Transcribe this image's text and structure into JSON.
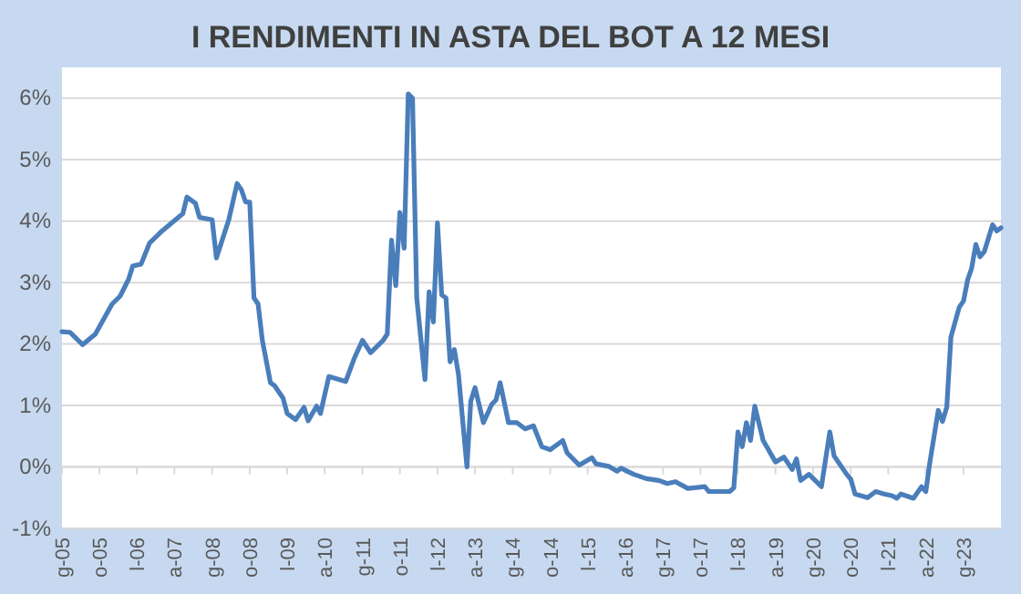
{
  "chart_data": {
    "type": "line",
    "title": "I RENDIMENTI IN ASTA DEL BOT A 12 MESI",
    "x": [
      "2005-01",
      "2005-03",
      "2005-06",
      "2005-09",
      "2006-01",
      "2006-03",
      "2006-05",
      "2006-06",
      "2006-08",
      "2006-10",
      "2007-01",
      "2007-06",
      "2007-07",
      "2007-09",
      "2007-10",
      "2008-01",
      "2008-02",
      "2008-05",
      "2008-07",
      "2008-08",
      "2008-09",
      "2008-10",
      "2008-11",
      "2008-12",
      "2009-01",
      "2009-03",
      "2009-04",
      "2009-06",
      "2009-07",
      "2009-09",
      "2009-11",
      "2009-12",
      "2010-02",
      "2010-03",
      "2010-05",
      "2010-09",
      "2010-11",
      "2011-01",
      "2011-03",
      "2011-06",
      "2011-07",
      "2011-08",
      "2011-09",
      "2011-10",
      "2011-11",
      "2011-12",
      "2012-01",
      "2012-02",
      "2012-04",
      "2012-05",
      "2012-06",
      "2012-07",
      "2012-08",
      "2012-09",
      "2012-10",
      "2012-11",
      "2012-12",
      "2013-02",
      "2013-03",
      "2013-04",
      "2013-06",
      "2013-08",
      "2013-09",
      "2013-10",
      "2013-12",
      "2014-02",
      "2014-04",
      "2014-06",
      "2014-08",
      "2014-10",
      "2015-01",
      "2015-02",
      "2015-05",
      "2015-08",
      "2015-09",
      "2015-12",
      "2016-02",
      "2016-03",
      "2016-06",
      "2016-09",
      "2016-12",
      "2017-02",
      "2017-04",
      "2017-07",
      "2017-11",
      "2017-12",
      "2018-05",
      "2018-06",
      "2018-07",
      "2018-08",
      "2018-09",
      "2018-10",
      "2018-11",
      "2019-01",
      "2019-04",
      "2019-06",
      "2019-08",
      "2019-09",
      "2019-10",
      "2019-12",
      "2020-03",
      "2020-05",
      "2020-06",
      "2020-09",
      "2020-10",
      "2020-11",
      "2021-02",
      "2021-04",
      "2021-06",
      "2021-08",
      "2021-09",
      "2021-10",
      "2022-01",
      "2022-03",
      "2022-04",
      "2022-05",
      "2022-07",
      "2022-08",
      "2022-09",
      "2022-10",
      "2022-12",
      "2023-01",
      "2023-02",
      "2023-03",
      "2023-04",
      "2023-05",
      "2023-06",
      "2023-08",
      "2023-09",
      "2023-10"
    ],
    "series": [
      {
        "color": "#4a7ebb",
        "values": [
          2.2,
          2.19,
          1.99,
          2.16,
          2.65,
          2.78,
          3.05,
          3.27,
          3.3,
          3.64,
          3.84,
          4.12,
          4.39,
          4.29,
          4.06,
          4.02,
          3.4,
          4.02,
          4.61,
          4.51,
          4.31,
          4.31,
          2.75,
          2.65,
          2.06,
          1.37,
          1.32,
          1.12,
          0.87,
          0.77,
          0.97,
          0.75,
          0.99,
          0.87,
          1.47,
          1.39,
          1.76,
          2.06,
          1.86,
          2.06,
          2.16,
          3.69,
          2.95,
          4.14,
          3.56,
          6.07,
          6.0,
          2.75,
          1.42,
          2.85,
          2.36,
          3.97,
          2.8,
          2.75,
          1.71,
          1.91,
          1.51,
          0.0,
          1.07,
          1.29,
          0.72,
          1.02,
          1.09,
          1.37,
          0.72,
          0.72,
          0.62,
          0.67,
          0.33,
          0.28,
          0.43,
          0.23,
          0.03,
          0.15,
          0.05,
          0.01,
          -0.07,
          -0.02,
          -0.12,
          -0.19,
          -0.22,
          -0.27,
          -0.24,
          -0.35,
          -0.32,
          -0.4,
          -0.4,
          -0.34,
          0.57,
          0.33,
          0.72,
          0.43,
          0.99,
          0.43,
          0.08,
          0.16,
          -0.04,
          0.13,
          -0.22,
          -0.12,
          -0.32,
          0.57,
          0.18,
          -0.12,
          -0.2,
          -0.44,
          -0.5,
          -0.4,
          -0.44,
          -0.47,
          -0.51,
          -0.44,
          -0.51,
          -0.32,
          -0.4,
          0.08,
          0.92,
          0.74,
          0.97,
          2.11,
          2.6,
          2.7,
          3.05,
          3.23,
          3.62,
          3.42,
          3.5,
          3.94,
          3.84,
          3.89
        ]
      }
    ],
    "xlim": [
      "2005-01",
      "2023-10"
    ],
    "xticks": [
      {
        "value": "2005-01",
        "label": "g-05"
      },
      {
        "value": "2005-10",
        "label": "o-05"
      },
      {
        "value": "2006-07",
        "label": "l-06"
      },
      {
        "value": "2007-04",
        "label": "a-07"
      },
      {
        "value": "2008-01",
        "label": "g-08"
      },
      {
        "value": "2008-10",
        "label": "o-08"
      },
      {
        "value": "2009-07",
        "label": "l-09"
      },
      {
        "value": "2010-04",
        "label": "a-10"
      },
      {
        "value": "2011-01",
        "label": "g-11"
      },
      {
        "value": "2011-10",
        "label": "o-11"
      },
      {
        "value": "2012-07",
        "label": "l-12"
      },
      {
        "value": "2013-04",
        "label": "a-13"
      },
      {
        "value": "2014-01",
        "label": "g-14"
      },
      {
        "value": "2014-10",
        "label": "o-14"
      },
      {
        "value": "2015-07",
        "label": "l-15"
      },
      {
        "value": "2016-04",
        "label": "a-16"
      },
      {
        "value": "2017-01",
        "label": "g-17"
      },
      {
        "value": "2017-10",
        "label": "o-17"
      },
      {
        "value": "2018-07",
        "label": "l-18"
      },
      {
        "value": "2019-04",
        "label": "a-19"
      },
      {
        "value": "2020-01",
        "label": "g-20"
      },
      {
        "value": "2020-10",
        "label": "o-20"
      },
      {
        "value": "2021-07",
        "label": "l-21"
      },
      {
        "value": "2022-04",
        "label": "a-22"
      },
      {
        "value": "2023-01",
        "label": "g-23"
      }
    ],
    "ylim": [
      -1,
      6.5
    ],
    "yticks": [
      {
        "value": -1,
        "label": "-1%"
      },
      {
        "value": 0,
        "label": "0%"
      },
      {
        "value": 1,
        "label": "1%"
      },
      {
        "value": 2,
        "label": "2%"
      },
      {
        "value": 3,
        "label": "3%"
      },
      {
        "value": 4,
        "label": "4%"
      },
      {
        "value": 5,
        "label": "5%"
      },
      {
        "value": 6,
        "label": "6%"
      }
    ],
    "grid": "y"
  }
}
